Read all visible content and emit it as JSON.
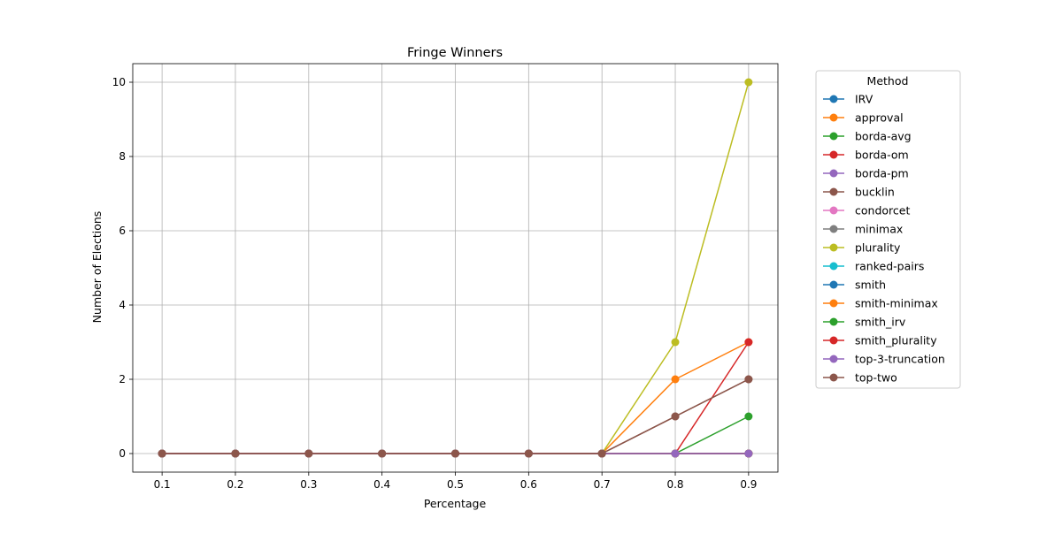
{
  "chart_data": {
    "type": "line",
    "title": "Fringe Winners",
    "xlabel": "Percentage",
    "ylabel": "Number of Elections",
    "x": [
      0.1,
      0.2,
      0.3,
      0.4,
      0.5,
      0.6,
      0.7,
      0.8,
      0.9
    ],
    "x_tick_labels": [
      "0.1",
      "0.2",
      "0.3",
      "0.4",
      "0.5",
      "0.6",
      "0.7",
      "0.8",
      "0.9"
    ],
    "xlim": [
      0.06,
      0.94
    ],
    "ylim": [
      -0.5,
      10.5
    ],
    "y_ticks": [
      0,
      2,
      4,
      6,
      8,
      10
    ],
    "y_tick_labels": [
      "0",
      "2",
      "4",
      "6",
      "8",
      "10"
    ],
    "grid": true,
    "legend_title": "Method",
    "legend_position": "outside-right",
    "series": [
      {
        "name": "IRV",
        "color": "#1f77b4",
        "values": [
          0,
          0,
          0,
          0,
          0,
          0,
          0,
          0,
          0
        ]
      },
      {
        "name": "approval",
        "color": "#ff7f0e",
        "values": [
          0,
          0,
          0,
          0,
          0,
          0,
          0,
          2,
          3
        ]
      },
      {
        "name": "borda-avg",
        "color": "#2ca02c",
        "values": [
          0,
          0,
          0,
          0,
          0,
          0,
          0,
          0,
          1
        ]
      },
      {
        "name": "borda-om",
        "color": "#d62728",
        "values": [
          0,
          0,
          0,
          0,
          0,
          0,
          0,
          0,
          3
        ]
      },
      {
        "name": "borda-pm",
        "color": "#9467bd",
        "values": [
          0,
          0,
          0,
          0,
          0,
          0,
          0,
          0,
          0
        ]
      },
      {
        "name": "bucklin",
        "color": "#8c564b",
        "values": [
          0,
          0,
          0,
          0,
          0,
          0,
          0,
          1,
          2
        ]
      },
      {
        "name": "condorcet",
        "color": "#e377c2",
        "values": [
          0,
          0,
          0,
          0,
          0,
          0,
          0,
          0,
          0
        ]
      },
      {
        "name": "minimax",
        "color": "#7f7f7f",
        "values": [
          0,
          0,
          0,
          0,
          0,
          0,
          0,
          0,
          0
        ]
      },
      {
        "name": "plurality",
        "color": "#bcbd22",
        "values": [
          0,
          0,
          0,
          0,
          0,
          0,
          0,
          3,
          10
        ]
      },
      {
        "name": "ranked-pairs",
        "color": "#17becf",
        "values": [
          0,
          0,
          0,
          0,
          0,
          0,
          0,
          0,
          0
        ]
      },
      {
        "name": "smith",
        "color": "#1f77b4",
        "values": [
          0,
          0,
          0,
          0,
          0,
          0,
          0,
          0,
          0
        ]
      },
      {
        "name": "smith-minimax",
        "color": "#ff7f0e",
        "values": [
          0,
          0,
          0,
          0,
          0,
          0,
          0,
          0,
          0
        ]
      },
      {
        "name": "smith_irv",
        "color": "#2ca02c",
        "values": [
          0,
          0,
          0,
          0,
          0,
          0,
          0,
          0,
          0
        ]
      },
      {
        "name": "smith_plurality",
        "color": "#d62728",
        "values": [
          0,
          0,
          0,
          0,
          0,
          0,
          0,
          0,
          0
        ]
      },
      {
        "name": "top-3-truncation",
        "color": "#9467bd",
        "values": [
          0,
          0,
          0,
          0,
          0,
          0,
          0,
          0,
          0
        ]
      },
      {
        "name": "top-two",
        "color": "#8c564b",
        "values": [
          0,
          0,
          0,
          0,
          0,
          0,
          0,
          1,
          2
        ]
      }
    ]
  }
}
